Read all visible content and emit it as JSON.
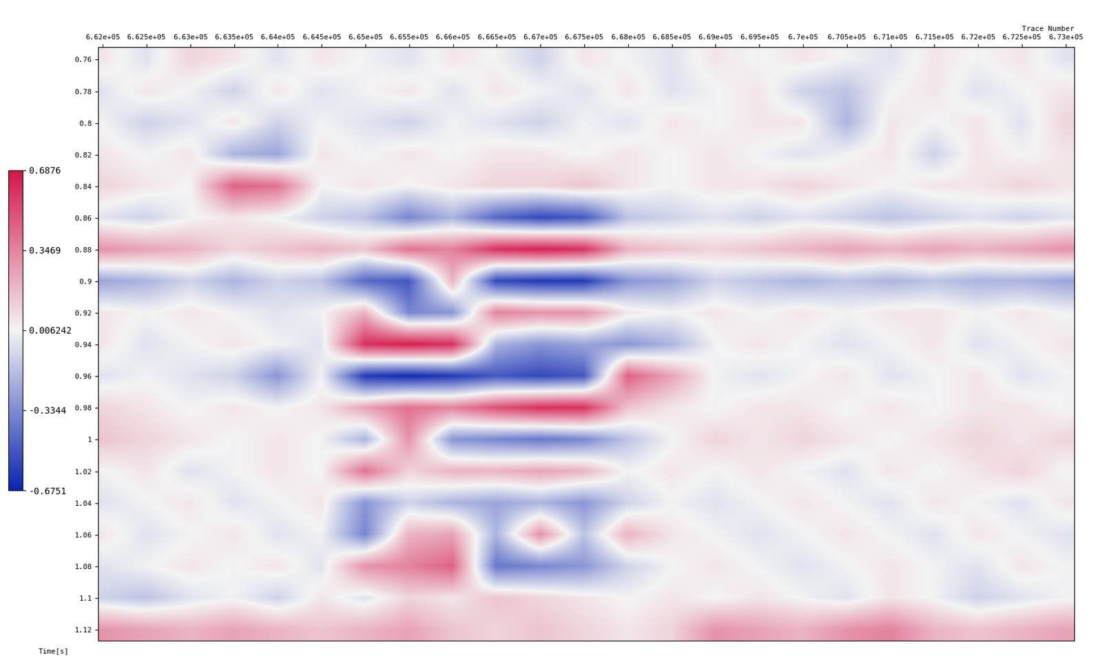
{
  "chart_data": {
    "type": "heatmap",
    "x_label": "Trace Number",
    "y_label": "Time[s]",
    "x": [
      662000,
      662500,
      663000,
      663500,
      664000,
      664500,
      665000,
      665500,
      666000,
      666500,
      667000,
      667500,
      668000,
      668500,
      669000,
      669500,
      670000,
      670500,
      671000,
      671500,
      672000,
      672500,
      673000
    ],
    "y": [
      0.76,
      0.78,
      0.8,
      0.82,
      0.84,
      0.86,
      0.88,
      0.9,
      0.92,
      0.94,
      0.96,
      0.98,
      1,
      1.02,
      1.04,
      1.06,
      1.08,
      1.1,
      1.12
    ],
    "cells": [
      [
        0.05,
        -0.05,
        0.1,
        0.05,
        -0.05,
        0.05,
        0.0,
        -0.05,
        0.05,
        0.0,
        -0.1,
        0.05,
        0.0,
        -0.05,
        0.05,
        0.0,
        0.05,
        0.0,
        -0.05,
        0.05,
        0.0,
        0.05,
        -0.05
      ],
      [
        -0.05,
        0.05,
        0.0,
        -0.1,
        0.05,
        -0.05,
        0.0,
        0.05,
        -0.05,
        0.05,
        0.0,
        -0.05,
        0.05,
        -0.05,
        0.0,
        0.05,
        -0.1,
        -0.15,
        0.0,
        0.05,
        -0.05,
        0.0,
        0.05
      ],
      [
        0.0,
        -0.1,
        -0.05,
        0.05,
        -0.1,
        0.0,
        -0.05,
        -0.1,
        0.0,
        -0.05,
        -0.1,
        0.0,
        -0.05,
        0.05,
        0.0,
        0.05,
        0.05,
        -0.2,
        0.05,
        0.0,
        0.05,
        -0.05,
        0.1
      ],
      [
        0.05,
        0.0,
        0.05,
        -0.2,
        -0.25,
        0.05,
        0.0,
        0.05,
        0.0,
        0.05,
        0.05,
        0.0,
        0.05,
        0.0,
        0.05,
        0.0,
        -0.05,
        0.0,
        0.05,
        -0.1,
        0.05,
        0.0,
        0.05
      ],
      [
        0.1,
        0.05,
        0.0,
        0.45,
        0.4,
        0.0,
        0.05,
        0.0,
        0.05,
        0.1,
        0.1,
        0.15,
        0.05,
        0.0,
        0.05,
        0.05,
        0.1,
        0.05,
        0.0,
        0.05,
        0.05,
        0.1,
        0.05
      ],
      [
        -0.05,
        -0.1,
        0.0,
        0.05,
        0.0,
        -0.1,
        -0.15,
        -0.35,
        -0.2,
        -0.45,
        -0.55,
        -0.5,
        -0.15,
        -0.1,
        -0.05,
        -0.1,
        -0.05,
        -0.1,
        -0.15,
        -0.1,
        -0.05,
        -0.1,
        -0.05
      ],
      [
        0.3,
        0.25,
        0.2,
        0.1,
        0.15,
        0.2,
        0.15,
        0.4,
        0.35,
        0.6,
        0.65,
        0.6,
        0.2,
        0.15,
        0.1,
        0.15,
        0.2,
        0.25,
        0.2,
        0.25,
        0.2,
        0.25,
        0.3
      ],
      [
        -0.25,
        -0.2,
        -0.1,
        -0.2,
        -0.1,
        -0.15,
        -0.45,
        -0.5,
        0.2,
        -0.55,
        -0.6,
        -0.6,
        -0.3,
        -0.25,
        -0.1,
        -0.15,
        -0.2,
        -0.15,
        -0.2,
        -0.15,
        -0.2,
        -0.2,
        -0.25
      ],
      [
        0.05,
        0.0,
        0.05,
        0.0,
        -0.05,
        0.0,
        0.2,
        -0.35,
        -0.3,
        0.35,
        0.3,
        0.3,
        0.05,
        0.0,
        0.05,
        0.0,
        0.05,
        0.0,
        0.05,
        0.05,
        0.0,
        0.05,
        0.0
      ],
      [
        0.05,
        -0.05,
        0.0,
        0.05,
        0.0,
        -0.05,
        0.6,
        0.65,
        0.6,
        -0.2,
        -0.3,
        -0.25,
        -0.3,
        -0.2,
        0.0,
        0.05,
        0.0,
        -0.05,
        0.0,
        0.05,
        -0.05,
        0.0,
        0.05
      ],
      [
        -0.05,
        0.0,
        -0.05,
        -0.1,
        -0.3,
        0.0,
        -0.6,
        -0.65,
        -0.6,
        -0.5,
        -0.55,
        -0.5,
        0.45,
        0.25,
        0.0,
        -0.05,
        0.0,
        0.05,
        -0.05,
        0.0,
        0.05,
        -0.05,
        0.0
      ],
      [
        0.1,
        0.05,
        0.0,
        0.05,
        0.0,
        0.05,
        0.25,
        0.4,
        0.35,
        0.5,
        0.6,
        0.6,
        0.15,
        0.05,
        0.0,
        0.05,
        0.05,
        0.0,
        0.05,
        0.0,
        0.05,
        0.05,
        0.0
      ],
      [
        0.15,
        0.1,
        0.05,
        0.0,
        0.05,
        0.0,
        -0.2,
        0.3,
        -0.3,
        -0.35,
        -0.4,
        -0.35,
        -0.15,
        0.0,
        0.1,
        0.05,
        0.1,
        0.05,
        0.0,
        0.05,
        0.1,
        0.05,
        0.1
      ],
      [
        0.0,
        0.05,
        -0.05,
        0.0,
        0.05,
        0.0,
        0.4,
        0.1,
        0.2,
        0.2,
        0.25,
        0.2,
        0.0,
        0.05,
        0.0,
        0.05,
        0.0,
        -0.05,
        0.05,
        0.0,
        0.05,
        0.1,
        0.0
      ],
      [
        -0.05,
        0.0,
        0.05,
        -0.05,
        0.0,
        0.05,
        -0.3,
        -0.1,
        -0.2,
        -0.25,
        -0.2,
        -0.3,
        -0.1,
        0.0,
        -0.05,
        0.0,
        0.05,
        0.0,
        -0.05,
        0.05,
        0.0,
        -0.05,
        0.05
      ],
      [
        0.05,
        -0.05,
        0.0,
        0.05,
        -0.05,
        0.0,
        -0.35,
        0.2,
        0.25,
        -0.2,
        0.3,
        -0.15,
        0.2,
        0.05,
        0.0,
        -0.05,
        0.0,
        0.05,
        0.0,
        -0.05,
        0.05,
        0.0,
        -0.05
      ],
      [
        -0.05,
        0.0,
        0.05,
        0.0,
        0.05,
        -0.05,
        0.3,
        0.35,
        0.45,
        -0.4,
        -0.35,
        -0.3,
        -0.1,
        0.0,
        0.05,
        0.0,
        -0.05,
        0.0,
        0.05,
        0.0,
        -0.05,
        0.05,
        0.0
      ],
      [
        -0.1,
        -0.15,
        -0.05,
        0.0,
        -0.1,
        0.05,
        -0.05,
        0.1,
        0.05,
        0.15,
        0.1,
        0.05,
        0.0,
        0.05,
        0.0,
        0.05,
        0.0,
        -0.05,
        0.05,
        0.0,
        -0.1,
        -0.05,
        0.0
      ],
      [
        0.3,
        0.25,
        0.2,
        0.25,
        0.2,
        0.15,
        0.2,
        0.25,
        0.15,
        0.1,
        0.15,
        0.1,
        0.05,
        0.1,
        0.3,
        0.25,
        0.2,
        0.3,
        0.35,
        0.2,
        0.15,
        0.2,
        0.25
      ]
    ],
    "colors": [
      "#0a24b0",
      "#f4f4f4",
      "#d4154a"
    ],
    "xlim": [
      661950,
      673100
    ],
    "ylim": [
      1.127,
      0.752
    ],
    "xticks": [
      {
        "value": 662000,
        "label": "6.62e+05"
      },
      {
        "value": 662500,
        "label": "6.625e+05"
      },
      {
        "value": 663000,
        "label": "6.63e+05"
      },
      {
        "value": 663500,
        "label": "6.635e+05"
      },
      {
        "value": 664000,
        "label": "6.64e+05"
      },
      {
        "value": 664500,
        "label": "6.645e+05"
      },
      {
        "value": 665000,
        "label": "6.65e+05"
      },
      {
        "value": 665500,
        "label": "6.655e+05"
      },
      {
        "value": 666000,
        "label": "6.66e+05"
      },
      {
        "value": 666500,
        "label": "6.665e+05"
      },
      {
        "value": 667000,
        "label": "6.67e+05"
      },
      {
        "value": 667500,
        "label": "6.675e+05"
      },
      {
        "value": 668000,
        "label": "6.68e+05"
      },
      {
        "value": 668500,
        "label": "6.685e+05"
      },
      {
        "value": 669000,
        "label": "6.69e+05"
      },
      {
        "value": 669500,
        "label": "6.695e+05"
      },
      {
        "value": 670000,
        "label": "6.7e+05"
      },
      {
        "value": 670500,
        "label": "6.705e+05"
      },
      {
        "value": 671000,
        "label": "6.71e+05"
      },
      {
        "value": 671500,
        "label": "6.715e+05"
      },
      {
        "value": 672000,
        "label": "6.72e+05"
      },
      {
        "value": 672500,
        "label": "6.725e+05"
      },
      {
        "value": 673000,
        "label": "6.73e+05"
      }
    ],
    "yticks": [
      0.76,
      0.78,
      0.8,
      0.82,
      0.84,
      0.86,
      0.88,
      0.9,
      0.92,
      0.94,
      0.96,
      0.98,
      1,
      1.02,
      1.04,
      1.06,
      1.08,
      1.1,
      1.12
    ],
    "colorbar": {
      "range": [
        -0.6751,
        0.6876
      ],
      "ticks": [
        0.6876,
        0.3469,
        0.006242,
        -0.3344,
        -0.6751
      ]
    }
  }
}
